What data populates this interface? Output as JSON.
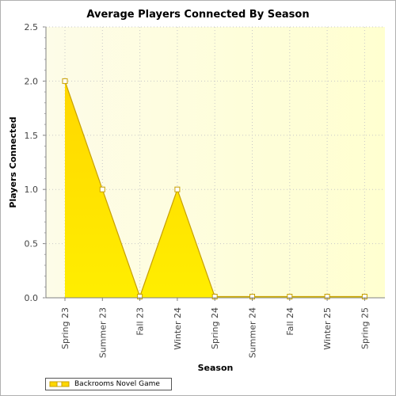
{
  "chart_data": {
    "type": "area",
    "title": "Average Players Connected By Season",
    "xlabel": "Season",
    "ylabel": "Players Connected",
    "categories": [
      "Spring 23",
      "Summer 23",
      "Fall 23",
      "Winter 24",
      "Spring 24",
      "Summer 24",
      "Fall 24",
      "Winter 25",
      "Spring 25"
    ],
    "series": [
      {
        "name": "Backrooms Novel Game",
        "values": [
          2.0,
          1.0,
          0.0,
          1.0,
          0.0,
          0.0,
          0.0,
          0.0,
          0.0
        ]
      }
    ],
    "ylim": [
      0,
      2.5
    ],
    "yticks": [
      "0.0",
      "0.5",
      "1.0",
      "1.5",
      "2.0",
      "2.5"
    ],
    "grid": true,
    "legend_position": "bottom-left",
    "colors": {
      "fill_top": "#ffd700",
      "fill_bottom": "#ffee00",
      "line": "#c8a000",
      "marker_fill": "#ffffff",
      "background_left": "#fdfce8",
      "background_right": "#ffffd0",
      "grid": "#c8c8c8"
    }
  }
}
